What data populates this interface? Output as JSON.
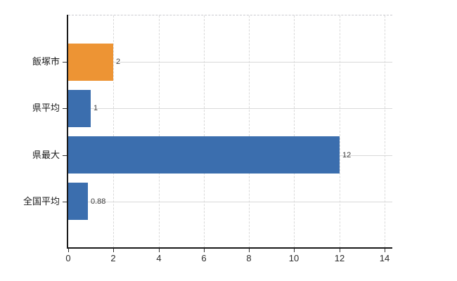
{
  "page": {
    "background": "#FFFFFF"
  },
  "chart_data": {
    "type": "bar",
    "orientation": "horizontal",
    "title": "",
    "categories": [
      "飯塚市",
      "県平均",
      "県最大",
      "全国平均"
    ],
    "values": [
      2,
      1,
      12,
      0.88
    ],
    "value_labels": [
      "2",
      "1",
      "12",
      "0.88"
    ],
    "bar_colors": [
      "#ED9434",
      "#3B6EAE",
      "#3B6EAE",
      "#3B6EAE"
    ],
    "xlim": [
      0,
      14
    ],
    "xticks": [
      0,
      2,
      4,
      6,
      8,
      10,
      12,
      14
    ],
    "xtick_labels": [
      "0",
      "2",
      "4",
      "6",
      "8",
      "10",
      "12",
      "14"
    ],
    "grid": {
      "vertical": true,
      "horizontal": true
    },
    "legend": "none",
    "colors": {
      "highlight_bar": "#ED9434",
      "default_bar": "#3B6EAE",
      "gridline": "#D9D9D9",
      "top_border": "#C9C9CF",
      "axis": "#1A1A1A",
      "category_text": "#1A1A1A",
      "value_text": "#3D3D3D",
      "tick_text": "#2B2B2B",
      "background": "#FFFFFF"
    }
  }
}
